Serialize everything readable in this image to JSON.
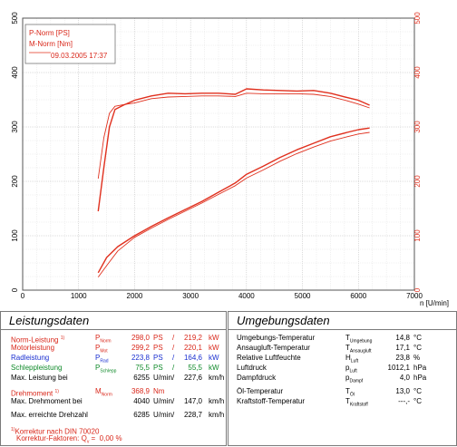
{
  "chart_data": {
    "type": "line",
    "xlabel": "n [U/min]",
    "xlim": [
      0,
      7000
    ],
    "ylim_left": [
      0,
      500
    ],
    "ylim_right": [
      0,
      500
    ],
    "x_ticks": [
      "0",
      "1000",
      "2000",
      "3000",
      "4000",
      "5000",
      "6000",
      "7000"
    ],
    "y_ticks_left": [
      "0",
      "100",
      "200",
      "300",
      "400",
      "500"
    ],
    "y_ticks_right": [
      "0",
      "100",
      "200",
      "300",
      "400",
      "500"
    ],
    "legend": {
      "position": "top-left",
      "entries": [
        "P-Norm [PS]",
        "M-Norm [Nm]",
        "09.03.2005 17:37"
      ]
    },
    "series": [
      {
        "name": "P-Norm [PS]",
        "color": "#e0301e",
        "x": [
          1350,
          1500,
          1700,
          2000,
          2300,
          2600,
          2900,
          3200,
          3500,
          3800,
          4000,
          4300,
          4600,
          4900,
          5200,
          5500,
          5800,
          6000,
          6200
        ],
        "y": [
          32,
          60,
          80,
          100,
          117,
          133,
          148,
          163,
          180,
          197,
          213,
          228,
          244,
          258,
          270,
          282,
          290,
          295,
          298
        ]
      },
      {
        "name": "P-Norm [PS] (2)",
        "color": "#e0301e",
        "x": [
          1350,
          1500,
          1700,
          2000,
          2300,
          2600,
          2900,
          3200,
          3500,
          3800,
          4000,
          4300,
          4600,
          4900,
          5200,
          5500,
          5800,
          6000,
          6200
        ],
        "y": [
          24,
          45,
          72,
          97,
          114,
          130,
          145,
          160,
          176,
          192,
          206,
          221,
          237,
          251,
          263,
          274,
          282,
          287,
          290
        ]
      },
      {
        "name": "M-Norm [Nm]",
        "color": "#e0301e",
        "x": [
          1350,
          1450,
          1550,
          1650,
          1800,
          2000,
          2300,
          2600,
          2900,
          3200,
          3500,
          3800,
          4000,
          4300,
          4600,
          4900,
          5200,
          5500,
          5800,
          6000,
          6200
        ],
        "y": [
          145,
          225,
          300,
          332,
          340,
          349,
          357,
          362,
          361,
          362,
          362,
          360,
          370,
          368,
          367,
          366,
          367,
          362,
          354,
          349,
          340
        ]
      },
      {
        "name": "M-Norm [Nm] (2)",
        "color": "#e0301e",
        "x": [
          1350,
          1450,
          1550,
          1650,
          1800,
          2000,
          2300,
          2600,
          2900,
          3200,
          3500,
          3800,
          4000,
          4300,
          4600,
          4900,
          5200,
          5500,
          5800,
          6000,
          6200
        ],
        "y": [
          205,
          280,
          325,
          338,
          341,
          344,
          352,
          355,
          356,
          357,
          357,
          356,
          362,
          361,
          361,
          361,
          360,
          356,
          348,
          342,
          335
        ]
      }
    ]
  },
  "leistung": {
    "title": "Leistungsdaten",
    "rows": [
      {
        "label": "Norm-Leistung",
        "sup": "1)",
        "sym": "P",
        "sub": "Norm",
        "v1": "298,0",
        "u1": "PS",
        "sep": "/",
        "v2": "219,2",
        "u2": "kW"
      },
      {
        "label": "Motorleistung",
        "sup": "",
        "sym": "P",
        "sub": "Mot",
        "v1": "299,2",
        "u1": "PS",
        "sep": "/",
        "v2": "220,1",
        "u2": "kW"
      },
      {
        "label": "Radleistung",
        "sup": "",
        "sym": "P",
        "sub": "Rad",
        "v1": "223,8",
        "u1": "PS",
        "sep": "/",
        "v2": "164,6",
        "u2": "kW"
      },
      {
        "label": "Schleppleistung",
        "sup": "",
        "sym": "P",
        "sub": "Schlepp",
        "v1": "75,5",
        "u1": "PS",
        "sep": "/",
        "v2": "55,5",
        "u2": "kW"
      }
    ],
    "max_leistung": {
      "label": "Max. Leistung bei",
      "v1": "6255",
      "u1": "U/min",
      "sep": "/",
      "v2": "227,6",
      "u2": "km/h"
    },
    "drehmoment": {
      "label": "Drehmoment",
      "sup": "1)",
      "sym": "M",
      "sub": "Norm",
      "v1": "368,9",
      "u1": "Nm"
    },
    "max_drehmoment": {
      "label": "Max. Drehmoment bei",
      "v1": "4040",
      "u1": "U/min",
      "sep": "/",
      "v2": "147,0",
      "u2": "km/h"
    },
    "max_drehzahl": {
      "label": "Max. erreichte Drehzahl",
      "v1": "6285",
      "u1": "U/min",
      "sep": "/",
      "v2": "228,7",
      "u2": "km/h"
    },
    "korrektur": {
      "sup": "1)",
      "label": "Korrektur nach DIN 70020",
      "factor_label": "Korrektur-Faktoren: Q",
      "factor_sub": "v",
      "factor_eq": "=",
      "factor_value": "0,00 %"
    }
  },
  "umgebung": {
    "title": "Umgebungsdaten",
    "rows": [
      {
        "label": "Umgebungs-Temperatur",
        "sym": "T",
        "sub": "Umgebung",
        "v": "14,8",
        "u": "°C"
      },
      {
        "label": "Ansaugluft-Temperatur",
        "sym": "T",
        "sub": "Ansaugluft",
        "v": "17,1",
        "u": "°C"
      },
      {
        "label": "Relative Luftfeuchte",
        "sym": "H",
        "sub": "Luft",
        "v": "23,8",
        "u": "%"
      },
      {
        "label": "Luftdruck",
        "sym": "p",
        "sub": "Luft",
        "v": "1012,1",
        "u": "hPa"
      },
      {
        "label": "Dampfdruck",
        "sym": "p",
        "sub": "Dampf",
        "v": "4,0",
        "u": "hPa"
      }
    ],
    "rows2": [
      {
        "label": "Öl-Temperatur",
        "sym": "T",
        "sub": "Öl",
        "v": "13,0",
        "u": "°C"
      },
      {
        "label": "Kraftstoff-Temperatur",
        "sym": "T",
        "sub": "Kraftstoff",
        "v": "---,-",
        "u": "°C"
      }
    ]
  }
}
